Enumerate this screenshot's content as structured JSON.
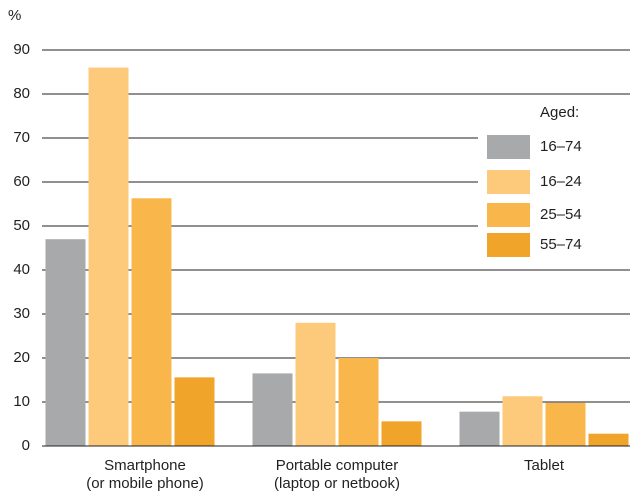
{
  "chart_data": {
    "type": "bar",
    "y_label": "%",
    "categories": [
      [
        "Smartphone",
        "(or mobile phone)"
      ],
      [
        "Portable computer",
        "(laptop or netbook)"
      ],
      [
        "Tablet"
      ]
    ],
    "legend_title": "Aged:",
    "series": [
      {
        "name": "16–74",
        "color": "#a7a9ab",
        "values": [
          47,
          16.5,
          7.8
        ]
      },
      {
        "name": "16–24",
        "color": "#fdc97a",
        "values": [
          86,
          28,
          11.3
        ]
      },
      {
        "name": "25–54",
        "color": "#f9b74b",
        "values": [
          56.3,
          20,
          9.8
        ]
      },
      {
        "name": "55–74",
        "color": "#f0a52a",
        "values": [
          15.6,
          5.6,
          2.8
        ]
      }
    ],
    "ylim": [
      0,
      90
    ],
    "yticks": [
      0,
      10,
      20,
      30,
      40,
      50,
      60,
      70,
      80,
      90
    ],
    "grid": true,
    "legend": "right"
  }
}
